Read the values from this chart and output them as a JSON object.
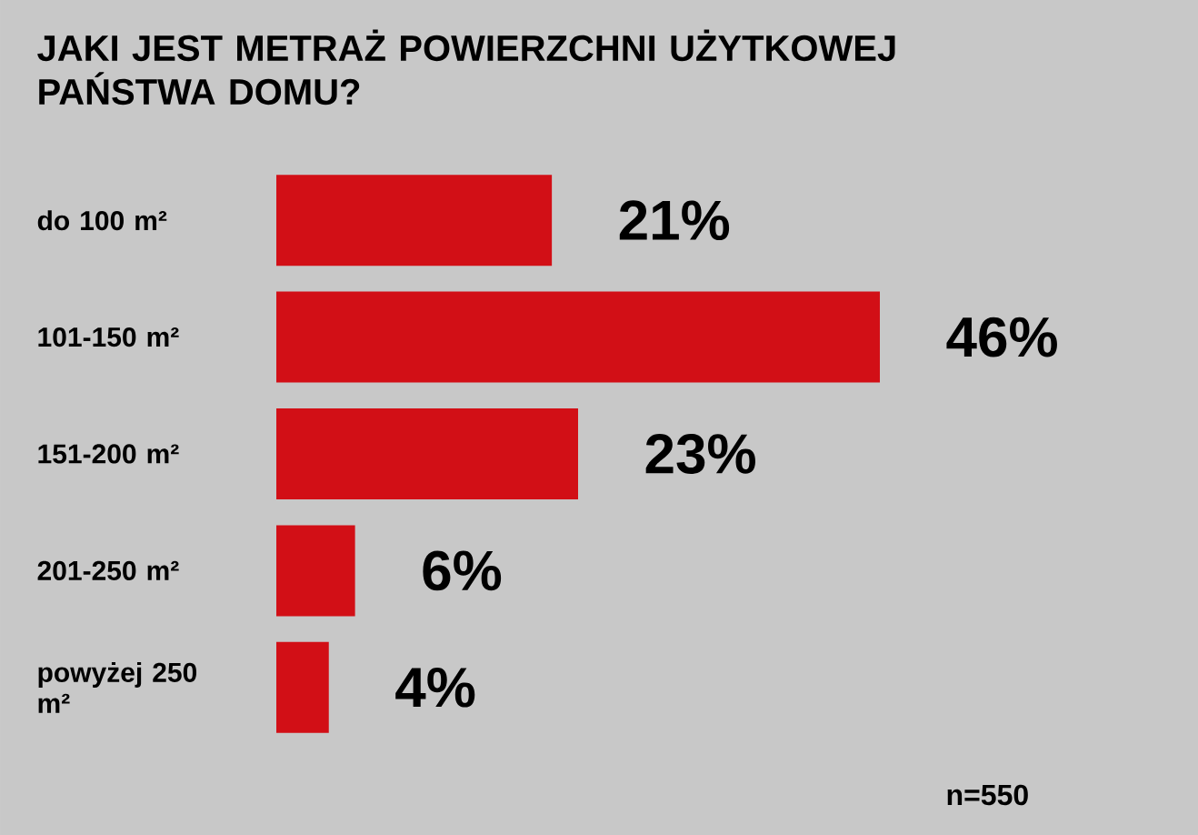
{
  "chart_data": {
    "type": "bar",
    "orientation": "horizontal",
    "title": "JAKI JEST METRAŻ POWIERZCHNI UŻYTKOWEJ PAŃSTWA DOMU?",
    "categories": [
      "do 100 m²",
      "101-150 m²",
      "151-200 m²",
      "201-250 m²",
      "powyżej 250 m²"
    ],
    "values": [
      21,
      46,
      23,
      6,
      4
    ],
    "value_labels": [
      "21%",
      "46%",
      "23%",
      "6%",
      "4%"
    ],
    "color": "#d20f16",
    "annotations": [
      "n=550"
    ]
  }
}
